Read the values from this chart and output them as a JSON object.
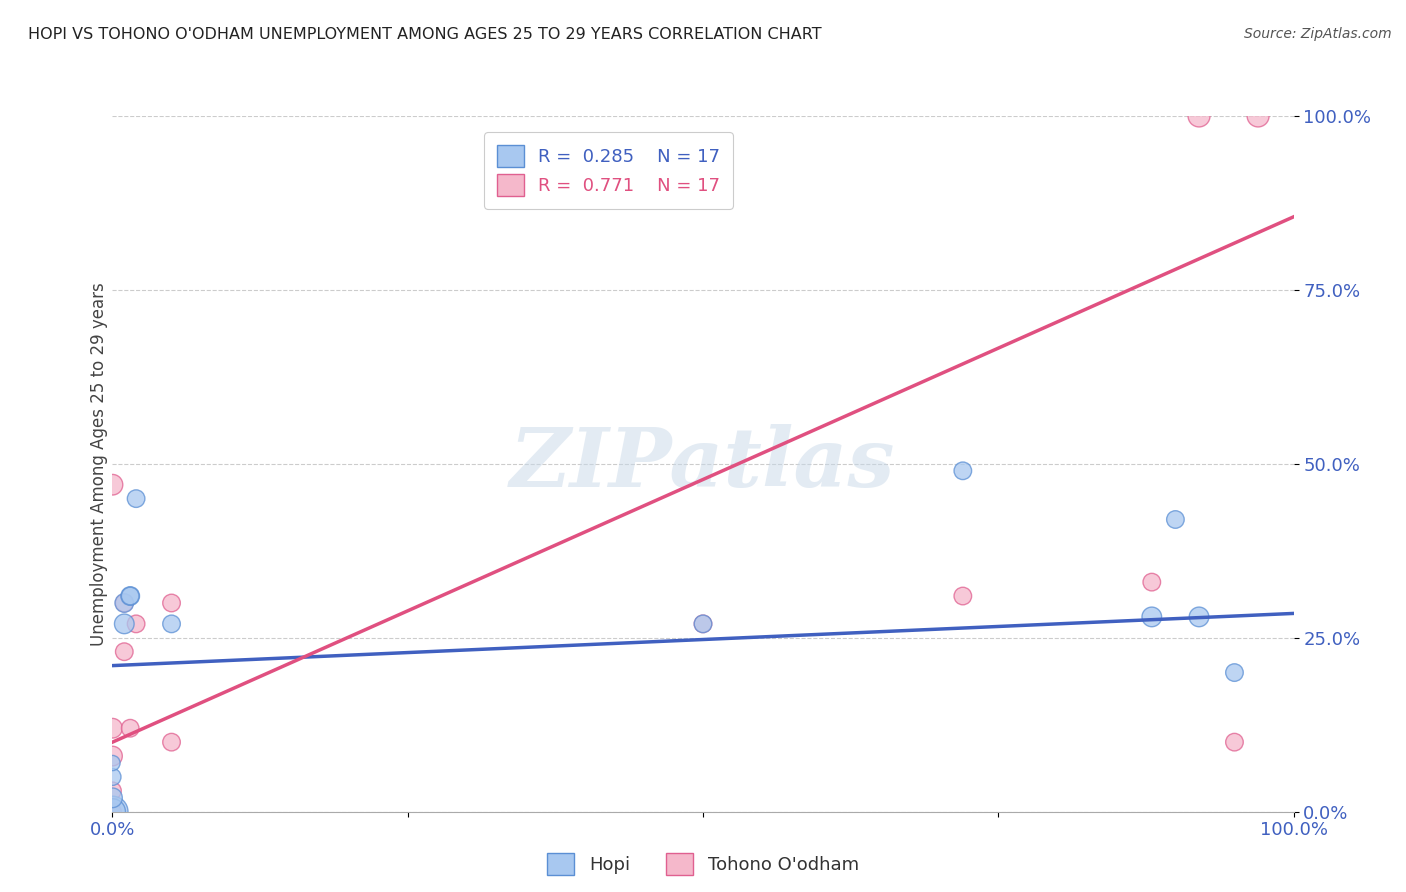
{
  "title": "HOPI VS TOHONO O'ODHAM UNEMPLOYMENT AMONG AGES 25 TO 29 YEARS CORRELATION CHART",
  "source": "Source: ZipAtlas.com",
  "ylabel": "Unemployment Among Ages 25 to 29 years",
  "xlim": [
    0.0,
    1.0
  ],
  "ylim": [
    0.0,
    1.0
  ],
  "ytick_labels": [
    "0.0%",
    "25.0%",
    "50.0%",
    "75.0%",
    "100.0%"
  ],
  "ytick_positions": [
    0.0,
    0.25,
    0.5,
    0.75,
    1.0
  ],
  "hopi_color": "#a8c8f0",
  "tohono_color": "#f5b8cb",
  "hopi_edge_color": "#5b8fd4",
  "tohono_edge_color": "#e06090",
  "hopi_line_color": "#4060c0",
  "tohono_line_color": "#e05080",
  "R_hopi": 0.285,
  "N_hopi": 17,
  "R_tohono": 0.771,
  "N_tohono": 17,
  "hopi_x": [
    0.0,
    0.0,
    0.0,
    0.0,
    0.0,
    0.01,
    0.01,
    0.015,
    0.015,
    0.02,
    0.05,
    0.5,
    0.72,
    0.88,
    0.9,
    0.92,
    0.95
  ],
  "hopi_y": [
    0.0,
    0.0,
    0.02,
    0.05,
    0.07,
    0.27,
    0.3,
    0.31,
    0.31,
    0.45,
    0.27,
    0.27,
    0.49,
    0.28,
    0.42,
    0.28,
    0.2
  ],
  "hopi_size": [
    500,
    350,
    200,
    150,
    120,
    200,
    180,
    180,
    160,
    160,
    160,
    160,
    160,
    200,
    160,
    200,
    160
  ],
  "tohono_x": [
    0.0,
    0.0,
    0.0,
    0.0,
    0.0,
    0.01,
    0.01,
    0.015,
    0.02,
    0.05,
    0.05,
    0.5,
    0.72,
    0.88,
    0.92,
    0.95,
    0.97
  ],
  "tohono_y": [
    0.0,
    0.03,
    0.08,
    0.12,
    0.47,
    0.23,
    0.3,
    0.12,
    0.27,
    0.1,
    0.3,
    0.27,
    0.31,
    0.33,
    1.0,
    0.1,
    1.0
  ],
  "tohono_size": [
    160,
    160,
    200,
    200,
    220,
    160,
    160,
    160,
    160,
    160,
    160,
    160,
    160,
    160,
    250,
    160,
    250
  ],
  "hopi_line_x0": 0.0,
  "hopi_line_y0": 0.21,
  "hopi_line_x1": 1.0,
  "hopi_line_y1": 0.285,
  "tohono_line_x0": 0.0,
  "tohono_line_y0": 0.1,
  "tohono_line_x1": 1.0,
  "tohono_line_y1": 0.855,
  "watermark_text": "ZIPatlas",
  "background_color": "#ffffff",
  "grid_color": "#cccccc"
}
